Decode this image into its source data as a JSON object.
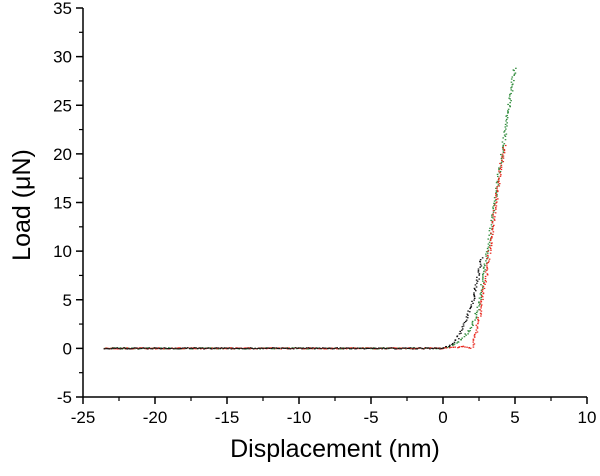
{
  "chart_data": {
    "type": "scatter",
    "title": "",
    "xlabel": "Displacement (nm)",
    "ylabel": "Load (μN)",
    "xlim": [
      -25,
      10
    ],
    "ylim": [
      -5,
      35
    ],
    "xticks": [
      -25,
      -20,
      -15,
      -10,
      -5,
      0,
      5,
      10
    ],
    "yticks": [
      -5,
      0,
      5,
      10,
      15,
      20,
      25,
      30,
      35
    ],
    "xtick_labels": [
      "-25",
      "-20",
      "-15",
      "-10",
      "-5",
      "0",
      "5",
      "10"
    ],
    "ytick_labels": [
      "-5",
      "0",
      "5",
      "10",
      "15",
      "20",
      "25",
      "30",
      "35"
    ],
    "grid": false,
    "legend": "none",
    "series": [
      {
        "color": "#2e8b3a",
        "points": [
          [
            -23.5,
            0
          ],
          [
            0,
            0
          ],
          [
            1.0,
            0.5
          ],
          [
            2.0,
            2
          ],
          [
            2.5,
            4.5
          ],
          [
            3.0,
            9
          ],
          [
            3.5,
            14
          ],
          [
            4.0,
            19
          ],
          [
            4.5,
            24
          ],
          [
            5.0,
            29
          ]
        ]
      },
      {
        "color": "#e8261c",
        "points": [
          [
            -23.5,
            0
          ],
          [
            0,
            0
          ],
          [
            1.5,
            0.2
          ],
          [
            2.0,
            0
          ],
          [
            2.5,
            3
          ],
          [
            3.0,
            7.5
          ],
          [
            3.5,
            13
          ],
          [
            4.0,
            18.5
          ],
          [
            4.3,
            21
          ]
        ]
      },
      {
        "color": "#111111",
        "points": [
          [
            -23.5,
            0
          ],
          [
            0,
            0
          ],
          [
            0.5,
            0.3
          ],
          [
            1.0,
            1
          ],
          [
            1.5,
            2.5
          ],
          [
            2.0,
            4.5
          ],
          [
            2.4,
            7
          ],
          [
            2.7,
            9.5
          ]
        ]
      }
    ]
  }
}
